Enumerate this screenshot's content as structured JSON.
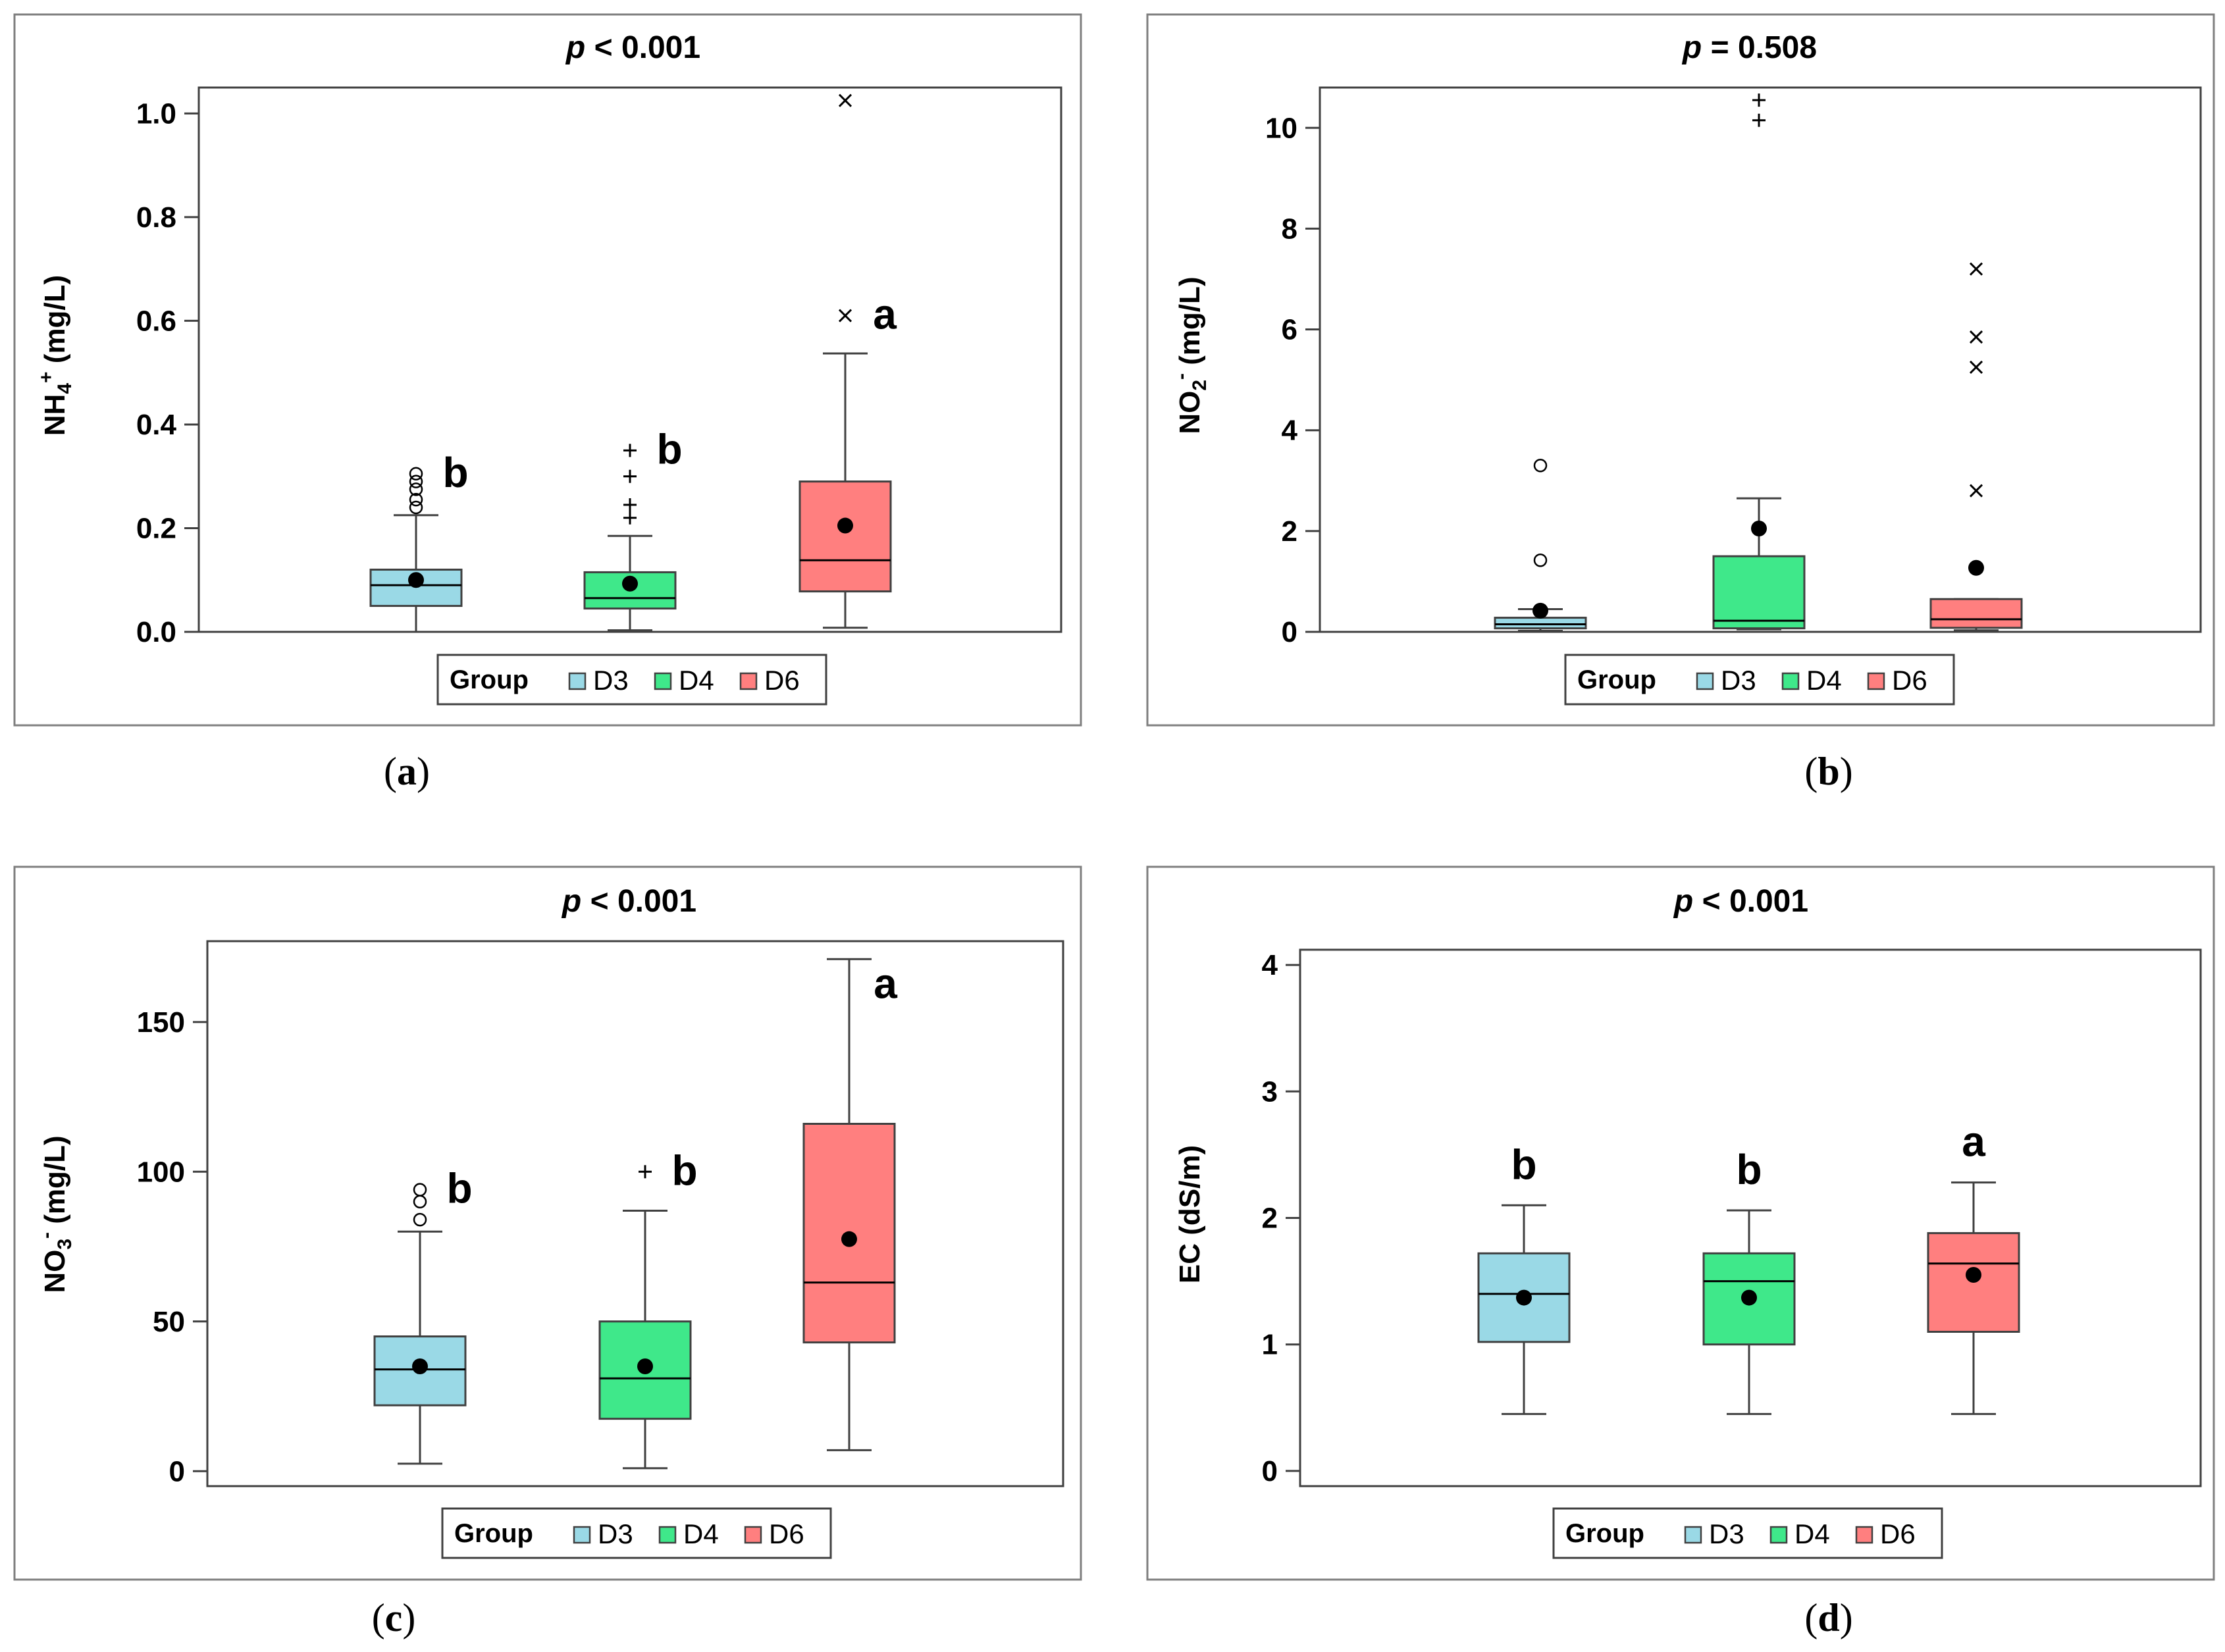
{
  "figure": {
    "legend_title": "Group",
    "legend_groups": [
      "D3",
      "D4",
      "D6"
    ],
    "group_colors": [
      "#9ad9e6",
      "#3fe88a",
      "#ff7f7f"
    ],
    "captions": [
      "a",
      "b",
      "c",
      "d"
    ]
  },
  "chart_data": [
    {
      "type": "box",
      "title_prefix": "p",
      "title_rest": " < 0.001",
      "ylabel_base": "NH",
      "ylabel_sub": "4",
      "ylabel_sup": "+",
      "ylabel_tail": " (mg/L)",
      "yticks": [
        "0.0",
        "0.2",
        "0.4",
        "0.6",
        "0.8",
        "1.0"
      ],
      "ylim": [
        0,
        1.05
      ],
      "categories": [
        "D3",
        "D4",
        "D6"
      ],
      "series": [
        {
          "name": "D3",
          "min": 0.0,
          "q1": 0.05,
          "median": 0.09,
          "q3": 0.12,
          "max": 0.225,
          "mean": 0.1,
          "letter": "b",
          "outliers": [
            {
              "v": 0.24,
              "s": "o"
            },
            {
              "v": 0.255,
              "s": "o"
            },
            {
              "v": 0.275,
              "s": "o"
            },
            {
              "v": 0.29,
              "s": "o"
            },
            {
              "v": 0.305,
              "s": "o"
            }
          ]
        },
        {
          "name": "D4",
          "min": 0.003,
          "q1": 0.045,
          "median": 0.065,
          "q3": 0.115,
          "max": 0.185,
          "mean": 0.093,
          "letter": "b",
          "outliers": [
            {
              "v": 0.22,
              "s": "+"
            },
            {
              "v": 0.245,
              "s": "+"
            },
            {
              "v": 0.3,
              "s": "+"
            },
            {
              "v": 0.35,
              "s": "+"
            }
          ]
        },
        {
          "name": "D6",
          "min": 0.008,
          "q1": 0.078,
          "median": 0.138,
          "q3": 0.29,
          "max": 0.537,
          "mean": 0.205,
          "letter": "a",
          "outliers": [
            {
              "v": 0.61,
              "s": "x"
            },
            {
              "v": 1.025,
              "s": "x"
            }
          ]
        }
      ]
    },
    {
      "type": "box",
      "title_prefix": "p",
      "title_rest": " = 0.508",
      "ylabel_base": "NO",
      "ylabel_sub": "2",
      "ylabel_sup": "-",
      "ylabel_tail": " (mg/L)",
      "yticks": [
        "0",
        "2",
        "4",
        "6",
        "8",
        "10"
      ],
      "ylim": [
        0,
        10.8
      ],
      "categories": [
        "D3",
        "D4",
        "D6"
      ],
      "series": [
        {
          "name": "D3",
          "min": 0.02,
          "q1": 0.07,
          "median": 0.15,
          "q3": 0.28,
          "max": 0.45,
          "mean": 0.42,
          "letter": "",
          "outliers": [
            {
              "v": 1.42,
              "s": "o"
            },
            {
              "v": 3.3,
              "s": "o"
            }
          ]
        },
        {
          "name": "D4",
          "min": 0.05,
          "q1": 0.07,
          "median": 0.22,
          "q3": 1.5,
          "max": 2.65,
          "mean": 2.05,
          "letter": "",
          "outliers": [
            {
              "v": 10.15,
              "s": "+"
            },
            {
              "v": 10.55,
              "s": "+"
            }
          ]
        },
        {
          "name": "D6",
          "min": 0.03,
          "q1": 0.08,
          "median": 0.25,
          "q3": 0.65,
          "max": 0.65,
          "mean": 1.27,
          "letter": "",
          "outliers": [
            {
              "v": 2.8,
              "s": "x"
            },
            {
              "v": 5.25,
              "s": "x"
            },
            {
              "v": 5.85,
              "s": "x"
            },
            {
              "v": 7.2,
              "s": "x"
            }
          ]
        }
      ]
    },
    {
      "type": "box",
      "title_prefix": "p",
      "title_rest": " < 0.001",
      "ylabel_base": "NO",
      "ylabel_sub": "3",
      "ylabel_sup": "-",
      "ylabel_tail": " (mg/L)",
      "yticks": [
        "0",
        "50",
        "100",
        "150"
      ],
      "ylim": [
        -5,
        177
      ],
      "categories": [
        "D3",
        "D4",
        "D6"
      ],
      "series": [
        {
          "name": "D3",
          "min": 2.5,
          "q1": 22,
          "median": 34,
          "q3": 45,
          "max": 80,
          "mean": 35,
          "letter": "b",
          "outliers": [
            {
              "v": 84,
              "s": "o"
            },
            {
              "v": 90,
              "s": "o"
            },
            {
              "v": 94,
              "s": "o"
            }
          ]
        },
        {
          "name": "D4",
          "min": 1,
          "q1": 17.5,
          "median": 31,
          "q3": 50,
          "max": 87,
          "mean": 35,
          "letter": "b",
          "outliers": [
            {
              "v": 100,
              "s": "+"
            }
          ]
        },
        {
          "name": "D6",
          "min": 7,
          "q1": 43,
          "median": 63,
          "q3": 116,
          "max": 171,
          "mean": 77.5,
          "letter": "a",
          "outliers": []
        }
      ]
    },
    {
      "type": "box",
      "title_prefix": "p",
      "title_rest": " < 0.001",
      "ylabel_base": "EC (dS/m)",
      "ylabel_sub": "",
      "ylabel_sup": "",
      "ylabel_tail": "",
      "yticks": [
        "0",
        "1",
        "2",
        "3",
        "4"
      ],
      "ylim": [
        -0.12,
        4.12
      ],
      "categories": [
        "D3",
        "D4",
        "D6"
      ],
      "series": [
        {
          "name": "D3",
          "min": 0.45,
          "q1": 1.02,
          "median": 1.4,
          "q3": 1.72,
          "max": 2.1,
          "mean": 1.37,
          "letter": "b",
          "outliers": []
        },
        {
          "name": "D4",
          "min": 0.45,
          "q1": 1.0,
          "median": 1.5,
          "q3": 1.72,
          "max": 2.06,
          "mean": 1.37,
          "letter": "b",
          "outliers": []
        },
        {
          "name": "D6",
          "min": 0.45,
          "q1": 1.1,
          "median": 1.64,
          "q3": 1.88,
          "max": 2.28,
          "mean": 1.55,
          "letter": "a",
          "outliers": []
        }
      ]
    }
  ]
}
